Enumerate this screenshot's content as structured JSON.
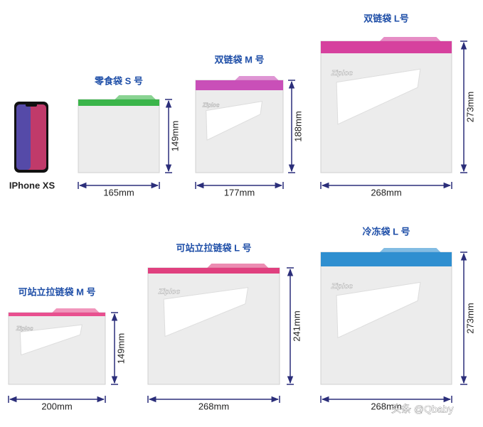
{
  "items": [
    {
      "title": "零食袋 S 号",
      "height": "149mm",
      "width": "165mm"
    },
    {
      "title": "双链袋 M 号",
      "height": "188mm",
      "width": "177mm"
    },
    {
      "title": "双链袋 L号",
      "height": "273mm",
      "width": "268mm"
    },
    {
      "title": "可站立拉链袋 M 号",
      "height": "149mm",
      "width": "200mm"
    },
    {
      "title": "可站立拉链袋 L 号",
      "height": "241mm",
      "width": "268mm"
    },
    {
      "title": "冷冻袋 L 号",
      "height": "273mm",
      "width": "268mm"
    }
  ],
  "phone": "IPhone XS",
  "brand": "Ziploc",
  "watermark": "头条 @Qbaby"
}
